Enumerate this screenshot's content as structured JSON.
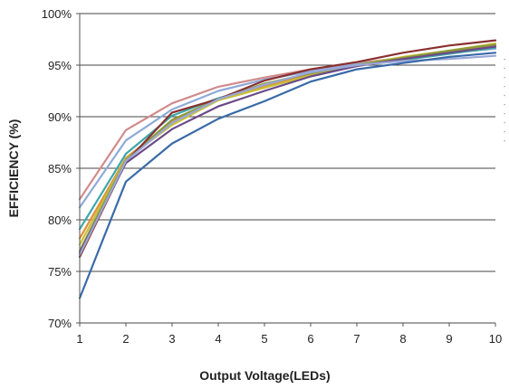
{
  "chart_data": {
    "type": "line",
    "xlabel": "Output Voltage(LEDs)",
    "ylabel": "EFFICIENCY (%)",
    "xlim": [
      1,
      10
    ],
    "ylim": [
      70,
      100
    ],
    "xticks": [
      "1",
      "2",
      "3",
      "4",
      "5",
      "6",
      "7",
      "8",
      "9",
      "10"
    ],
    "yticks": [
      "70%",
      "75%",
      "80%",
      "85%",
      "90%",
      "95%",
      "100%"
    ],
    "grid": "horizontal",
    "legend": "right (cut off)",
    "x": [
      1,
      2,
      3,
      4,
      5,
      6,
      7,
      8,
      9,
      10
    ],
    "series": [
      {
        "color": "#d08b8b",
        "values": [
          82.0,
          88.7,
          91.3,
          92.9,
          93.8,
          94.6,
          95.2,
          95.7,
          96.2,
          96.6
        ]
      },
      {
        "color": "#8faad8",
        "values": [
          81.2,
          87.7,
          90.7,
          92.5,
          93.6,
          94.4,
          95.1,
          95.6,
          96.2,
          96.6
        ]
      },
      {
        "color": "#3fa8a8",
        "values": [
          79.1,
          86.4,
          90.1,
          91.8,
          93.0,
          94.2,
          95.0,
          95.5,
          96.1,
          96.7
        ]
      },
      {
        "color": "#e08e3a",
        "values": [
          78.2,
          86.0,
          89.5,
          91.7,
          92.9,
          94.1,
          94.9,
          95.6,
          96.3,
          96.9
        ]
      },
      {
        "color": "#c8c03a",
        "values": [
          77.6,
          85.9,
          89.2,
          91.6,
          92.8,
          94.0,
          95.0,
          95.8,
          96.4,
          97.1
        ]
      },
      {
        "color": "#8a9a3a",
        "values": [
          77.0,
          85.8,
          89.7,
          91.7,
          93.2,
          94.2,
          95.0,
          95.7,
          96.4,
          97.0
        ]
      },
      {
        "color": "#8a3030",
        "values": [
          76.4,
          85.6,
          90.4,
          91.7,
          93.5,
          94.6,
          95.3,
          96.2,
          96.9,
          97.4
        ]
      },
      {
        "color": "#6a4a88",
        "values": [
          76.8,
          85.5,
          88.8,
          91.0,
          92.5,
          93.9,
          94.9,
          95.6,
          96.2,
          96.8
        ]
      },
      {
        "color": "#9aa8d6",
        "values": [
          76.6,
          85.7,
          89.4,
          91.7,
          93.1,
          94.3,
          95.0,
          95.4,
          95.6,
          95.9
        ]
      },
      {
        "color": "#3a6aa8",
        "values": [
          72.4,
          83.7,
          87.4,
          89.8,
          91.5,
          93.4,
          94.6,
          95.2,
          95.8,
          96.2
        ]
      }
    ],
    "legend_ticks": [
      "-",
      "-",
      "-",
      "-",
      "-",
      "-",
      "-",
      "-",
      "-",
      "-"
    ]
  }
}
